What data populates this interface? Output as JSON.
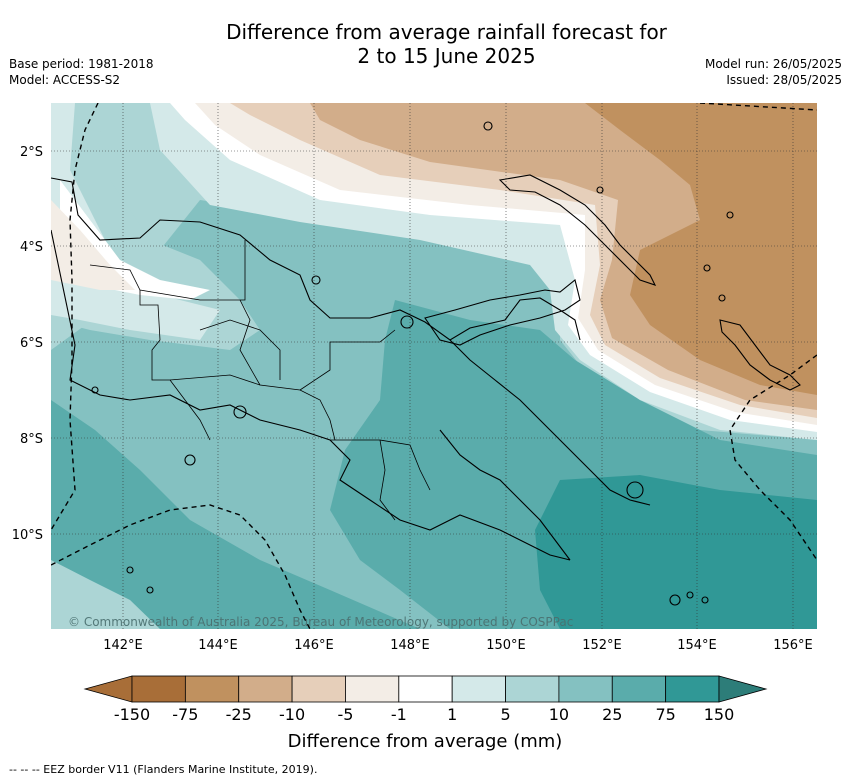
{
  "title": {
    "line1": "Difference from average rainfall forecast for",
    "line2": "2 to 15 June 2025"
  },
  "meta": {
    "base_period": "Base period: 1981-2018",
    "model": "Model: ACCESS-S2",
    "model_run": "Model run: 26/05/2025",
    "issued": "Issued: 28/05/2025"
  },
  "map": {
    "lat_labels": [
      "2°S",
      "4°S",
      "6°S",
      "8°S",
      "10°S"
    ],
    "lon_labels": [
      "142°E",
      "144°E",
      "146°E",
      "148°E",
      "150°E",
      "152°E",
      "154°E",
      "156°E"
    ],
    "copyright": "© Commonwealth of Australia 2025, Bureau of Meteorology, supported by COSPPac"
  },
  "colorbar": {
    "ticks": [
      "-150",
      "-75",
      "-25",
      "-10",
      "-5",
      "-1",
      "1",
      "5",
      "10",
      "25",
      "75",
      "150"
    ],
    "colors": [
      "#a86e38",
      "#c0915f",
      "#d2ad8a",
      "#e6cfba",
      "#f3ede6",
      "#ffffff",
      "#d4e9e9",
      "#acd5d5",
      "#84c1c1",
      "#5aacab",
      "#309896",
      "#2d7d79"
    ],
    "label": "Difference from average (mm)"
  },
  "footnote": "--  --  -- EEZ border V11 (Flanders Marine Institute, 2019)."
}
